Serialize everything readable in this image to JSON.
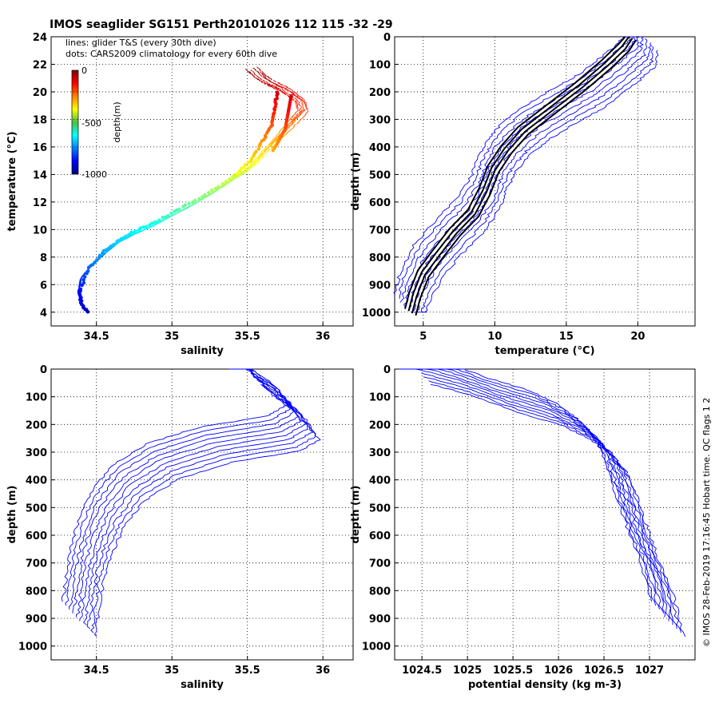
{
  "title": "IMOS seaglider SG151 Perth20101026 112  115  -32  -29",
  "credit": "© IMOS 28-Feb-2019 17:16:45 Hobart time. QC flags 1 2",
  "chart_data": [
    {
      "id": "ts",
      "type": "scatter",
      "xlabel": "salinity",
      "ylabel": "temperature (°C)",
      "xlim": [
        34.2,
        36.2
      ],
      "ylim": [
        3,
        24
      ],
      "xticks": [
        34.5,
        35,
        35.5,
        36
      ],
      "yticks": [
        4,
        6,
        8,
        10,
        12,
        14,
        16,
        18,
        20,
        22,
        24
      ],
      "legend": [
        "lines: glider T&S (every 30th dive)",
        "dots: CARS2009 climatology for every 60th dive"
      ],
      "colorbar": {
        "label": "depth(m)",
        "ticks": [
          "0",
          "-500",
          "-1000"
        ],
        "range": [
          -1000,
          0
        ]
      },
      "series": [
        {
          "name": "glider T&S",
          "x": [
            34.44,
            34.4,
            34.38,
            34.4,
            34.46,
            34.55,
            34.65,
            34.76,
            34.88,
            35.0,
            35.14,
            35.26,
            35.38,
            35.48,
            35.56,
            35.63,
            35.72,
            35.8,
            35.86,
            35.84,
            35.74,
            35.64,
            35.58,
            35.52
          ],
          "y": [
            4.0,
            4.6,
            5.5,
            6.5,
            7.3,
            8.2,
            9.1,
            9.7,
            10.3,
            11.0,
            11.8,
            12.6,
            13.5,
            14.2,
            15.0,
            15.9,
            16.9,
            17.9,
            18.6,
            19.3,
            20.1,
            20.6,
            21.0,
            21.6
          ]
        },
        {
          "name": "CARS2009 climatology",
          "x": [
            34.44,
            34.4,
            34.39,
            34.45,
            34.55,
            34.66,
            34.76,
            34.9,
            35.05,
            35.22,
            35.4,
            35.52,
            35.6,
            35.66,
            35.68,
            35.7
          ],
          "y": [
            4.0,
            4.6,
            5.5,
            7.2,
            8.4,
            9.3,
            9.9,
            10.6,
            11.5,
            12.5,
            13.8,
            15.0,
            16.4,
            17.6,
            18.8,
            20.0
          ]
        }
      ]
    },
    {
      "id": "temp",
      "type": "line",
      "xlabel": "temperature (°C)",
      "ylabel": "depth (m)",
      "xlim": [
        3,
        24
      ],
      "ylim": [
        1050,
        0
      ],
      "xticks": [
        5,
        10,
        15,
        20
      ],
      "yticks": [
        0,
        100,
        200,
        300,
        400,
        500,
        600,
        700,
        800,
        900,
        1000
      ],
      "series": [
        {
          "name": "glider",
          "x": [
            20.5,
            20.3,
            19.0,
            17.0,
            15.3,
            13.0,
            11.6,
            10.6,
            10.0,
            9.5,
            8.5,
            7.0,
            5.5,
            4.5,
            4.1
          ],
          "y": [
            0,
            60,
            120,
            200,
            250,
            320,
            380,
            440,
            500,
            570,
            650,
            730,
            820,
            920,
            1000
          ]
        },
        {
          "name": "climatology",
          "x": [
            19.5,
            19.0,
            17.8,
            16.0,
            14.0,
            12.0,
            10.8,
            9.9,
            9.3,
            8.5,
            7.2,
            6.0,
            5.0,
            4.4,
            4.1
          ],
          "y": [
            0,
            40,
            100,
            180,
            260,
            340,
            410,
            480,
            560,
            640,
            710,
            790,
            860,
            940,
            1000
          ]
        }
      ]
    },
    {
      "id": "sal",
      "type": "line",
      "xlabel": "salinity",
      "ylabel": "depth (m)",
      "xlim": [
        34.2,
        36.2
      ],
      "ylim": [
        1050,
        0
      ],
      "xticks": [
        34.5,
        35,
        35.5,
        36
      ],
      "yticks": [
        0,
        100,
        200,
        300,
        400,
        500,
        600,
        700,
        800,
        900,
        1000
      ],
      "series": [
        {
          "name": "glider",
          "x": [
            35.5,
            35.6,
            35.78,
            35.88,
            35.75,
            35.3,
            34.95,
            34.72,
            34.58,
            34.5,
            34.45,
            34.42,
            34.4
          ],
          "y": [
            0,
            50,
            120,
            200,
            240,
            280,
            340,
            420,
            520,
            620,
            720,
            820,
            910
          ]
        }
      ]
    },
    {
      "id": "dens",
      "type": "line",
      "xlabel": "potential density (kg m-3)",
      "ylabel": "depth (m)",
      "xlim": [
        1024.2,
        1027.5
      ],
      "ylim": [
        1050,
        0
      ],
      "xticks": [
        1024.5,
        1025,
        1025.5,
        1026,
        1026.5,
        1027
      ],
      "yticks": [
        0,
        100,
        200,
        300,
        400,
        500,
        600,
        700,
        800,
        900,
        1000
      ],
      "series": [
        {
          "name": "glider",
          "x": [
            1024.45,
            1024.9,
            1025.4,
            1025.9,
            1026.2,
            1026.45,
            1026.62,
            1026.72,
            1026.82,
            1026.95,
            1027.1,
            1027.22
          ],
          "y": [
            0,
            40,
            100,
            150,
            200,
            260,
            330,
            420,
            520,
            640,
            760,
            910
          ]
        }
      ]
    }
  ]
}
